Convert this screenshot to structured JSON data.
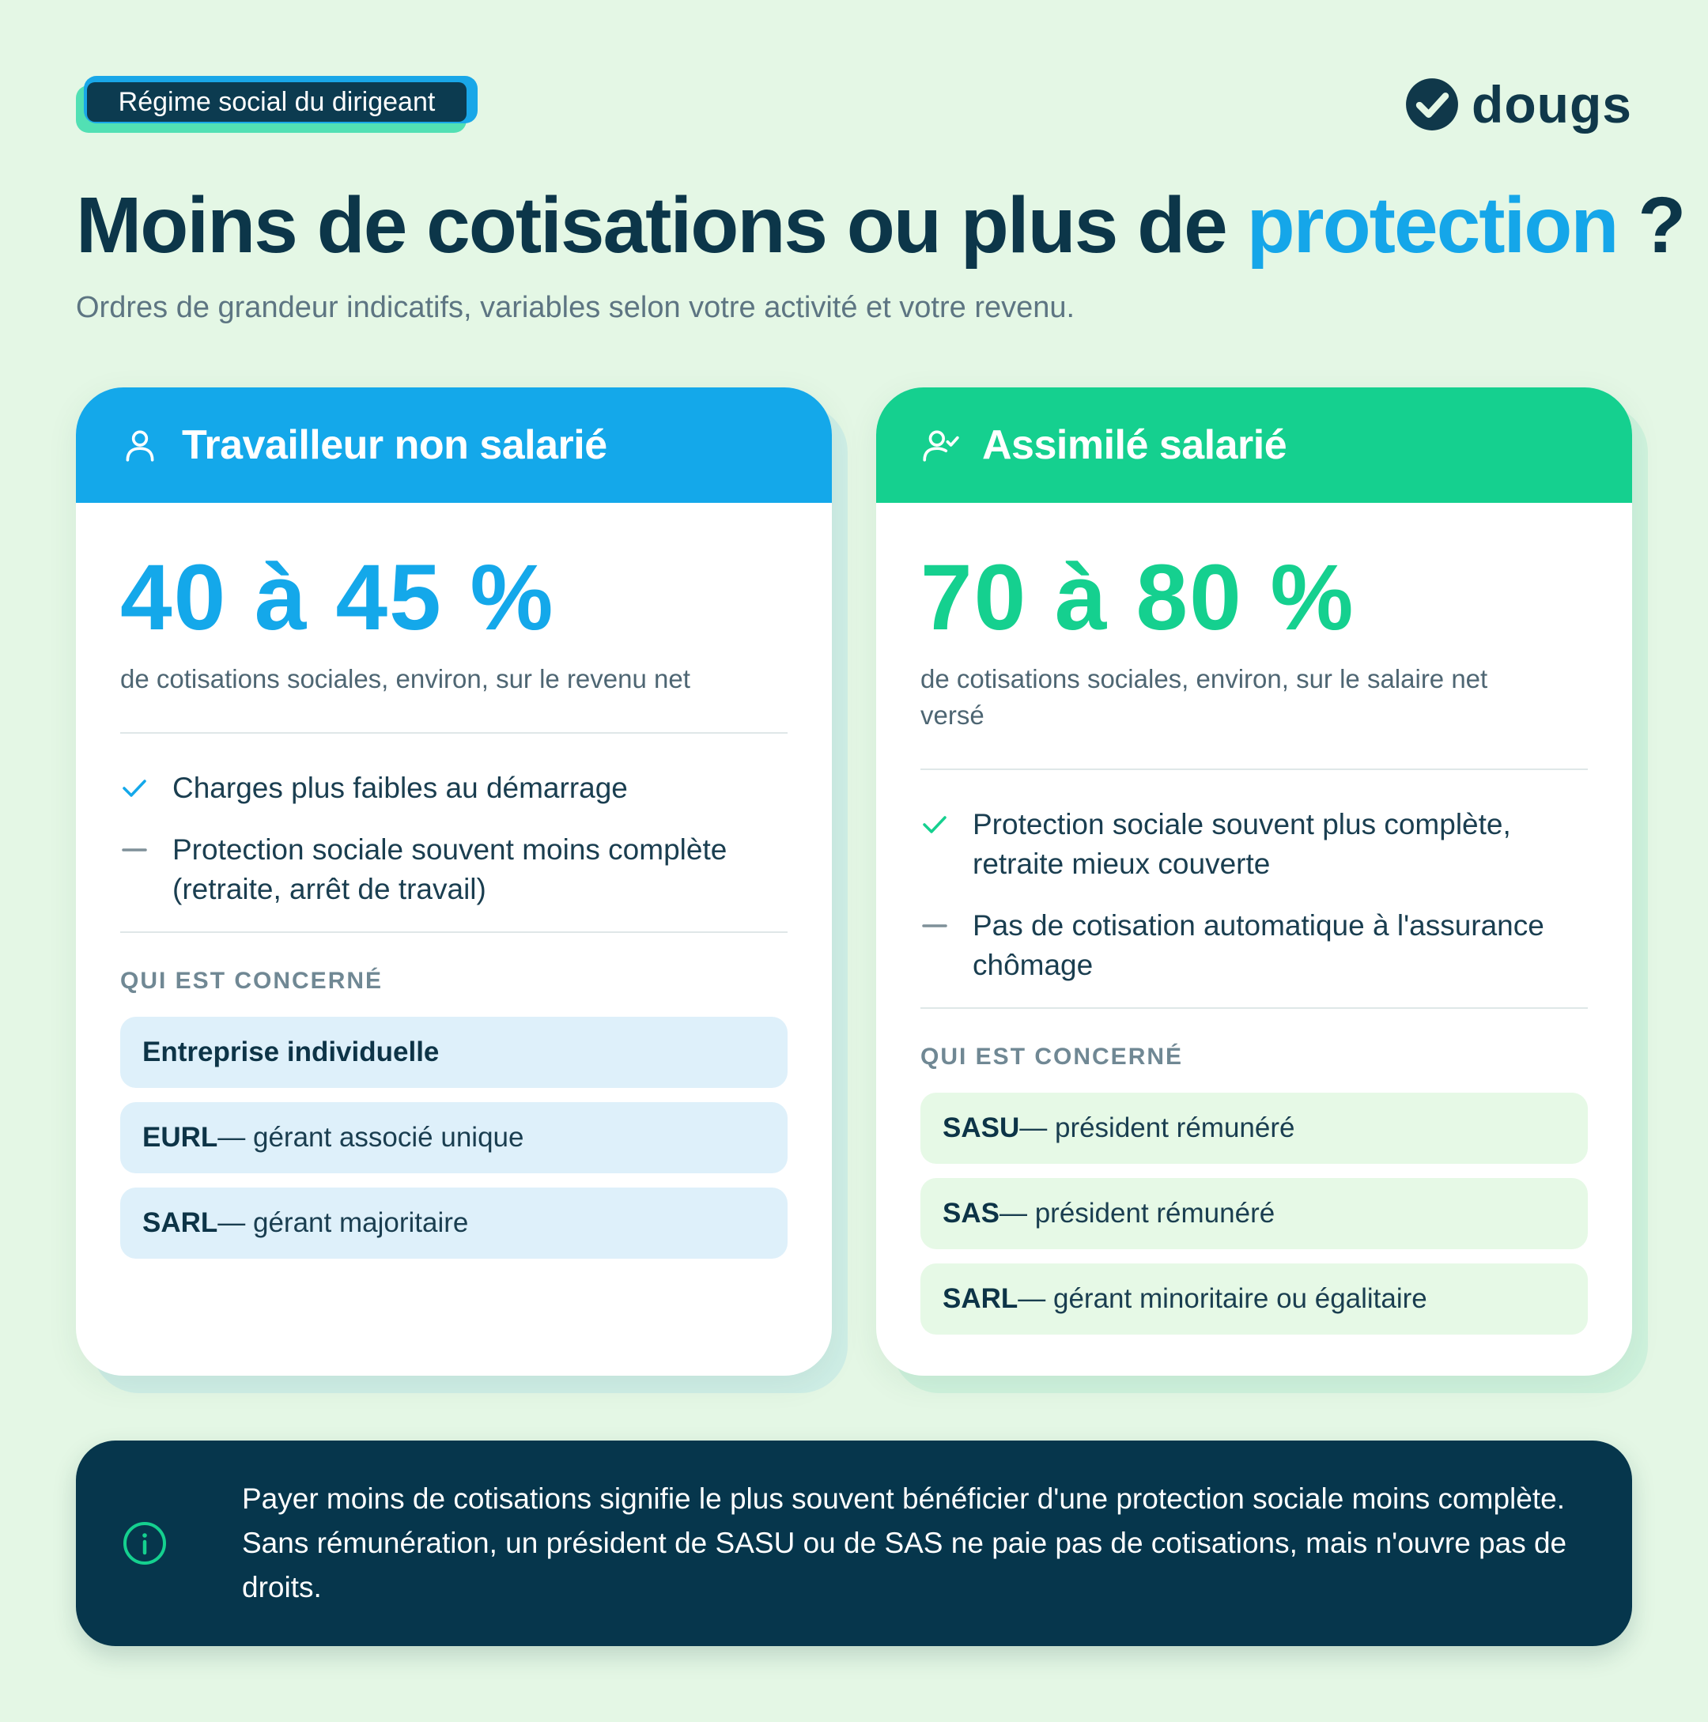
{
  "tag": "Régime social du dirigeant",
  "logo": {
    "name": "dougs",
    "icon": "check-circle-icon"
  },
  "title": {
    "main": "Moins de cotisations ou plus de ",
    "accent": "protection",
    "end": " ?"
  },
  "subtitle": "Ordres de grandeur indicatifs, variables selon votre activité et votre revenu.",
  "colors": {
    "blue": "#14a8ea",
    "green": "#15d08f",
    "navy": "#06364c",
    "background": "#e4f7e5"
  },
  "left_card": {
    "icon": "user-icon",
    "title": "Travailleur non salarié",
    "value": "40 à 45 %",
    "description": "de cotisations sociales, environ, sur le revenu net",
    "points": [
      {
        "type": "check",
        "text": "Charges plus faibles au démarrage"
      },
      {
        "type": "dash",
        "text": "Protection sociale souvent moins complète (retraite, arrêt de travail)"
      }
    ],
    "section_label": "QUI EST CONCERNÉ",
    "chips": [
      {
        "bold": "Entreprise individuelle",
        "rest": ""
      },
      {
        "bold": "EURL",
        "rest": " — gérant associé unique"
      },
      {
        "bold": "SARL",
        "rest": " — gérant majoritaire"
      }
    ]
  },
  "right_card": {
    "icon": "user-check-icon",
    "title": "Assimilé salarié",
    "value": "70 à 80 %",
    "description": "de cotisations sociales, environ, sur le salaire net versé",
    "points": [
      {
        "type": "check",
        "text": "Protection sociale souvent plus complète, retraite mieux couverte"
      },
      {
        "type": "dash",
        "text": "Pas de cotisation automatique à l'assurance chômage"
      }
    ],
    "section_label": "QUI EST CONCERNÉ",
    "chips": [
      {
        "bold": "SASU",
        "rest": " — président rémunéré"
      },
      {
        "bold": "SAS",
        "rest": " — président rémunéré"
      },
      {
        "bold": "SARL",
        "rest": " — gérant minoritaire ou égalitaire"
      }
    ]
  },
  "info": {
    "icon": "info-icon",
    "text": "Payer moins de cotisations signifie le plus souvent bénéficier d'une protection sociale moins complète. Sans rémunération, un président de SASU ou de SAS ne paie pas de cotisations, mais n'ouvre pas de droits."
  }
}
